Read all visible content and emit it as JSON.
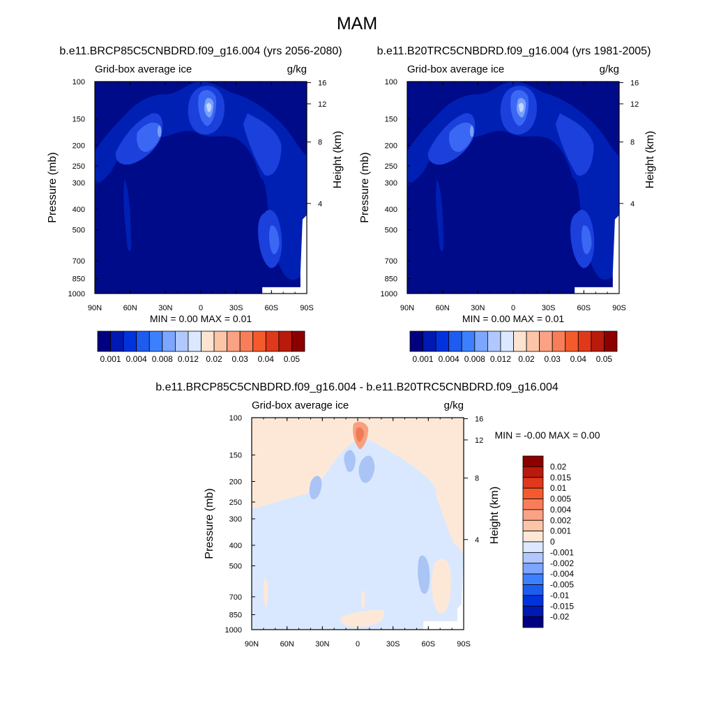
{
  "figure": {
    "title": "MAM",
    "colors": {
      "axis": "#000000",
      "background": "#ffffff"
    }
  },
  "chart_data": [
    {
      "type": "contour",
      "panel": "left",
      "title": "b.e11.BRCP85C5CNBDRD.f09_g16.004 (yrs 2056-2080)",
      "left_label": "Grid-box average ice",
      "right_label": "g/kg",
      "xlabel": "",
      "ylabel": "Pressure (mb)",
      "y2label": "Height (km)",
      "x_ticks": [
        "90N",
        "60N",
        "30N",
        "0",
        "30S",
        "60S",
        "90S"
      ],
      "x_range": [
        90,
        -90
      ],
      "y_ticks": [
        "100",
        "150",
        "200",
        "250",
        "300",
        "400",
        "500",
        "700",
        "850",
        "1000"
      ],
      "y_range": [
        100,
        1000
      ],
      "y2_ticks": [
        "16",
        "12",
        "8",
        "4"
      ],
      "stats": "MIN =   0.00  MAX =   0.01",
      "colorbar": {
        "orientation": "horizontal",
        "labels": [
          "0.001",
          "0.004",
          "0.008",
          "0.012",
          "0.02",
          "0.03",
          "0.04",
          "0.05"
        ],
        "colors": [
          "#000080",
          "#0019b3",
          "#0033dd",
          "#1e5cf0",
          "#3d80ff",
          "#7ca6ff",
          "#b0c8ff",
          "#dce8ff",
          "#fde3d0",
          "#fcc5a8",
          "#fba184",
          "#f87e5a",
          "#f55a2d",
          "#e0381a",
          "#b81a0c",
          "#8c0000"
        ]
      },
      "fill_colors": {
        "base": "#000b8a",
        "level1": "#0020b4",
        "level2": "#1b40dc",
        "level3": "#3a68f4",
        "level4": "#7aa0ff",
        "level5": "#c0d6ff"
      }
    },
    {
      "type": "contour",
      "panel": "right",
      "title": "b.e11.B20TRC5CNBDRD.f09_g16.004 (yrs 1981-2005)",
      "left_label": "Grid-box average ice",
      "right_label": "g/kg",
      "xlabel": "",
      "ylabel": "Pressure (mb)",
      "y2label": "Height (km)",
      "x_ticks": [
        "90N",
        "60N",
        "30N",
        "0",
        "30S",
        "60S",
        "90S"
      ],
      "x_range": [
        90,
        -90
      ],
      "y_ticks": [
        "100",
        "150",
        "200",
        "250",
        "300",
        "400",
        "500",
        "700",
        "850",
        "1000"
      ],
      "y_range": [
        100,
        1000
      ],
      "y2_ticks": [
        "16",
        "12",
        "8",
        "4"
      ],
      "stats": "MIN =   0.00  MAX =   0.01",
      "colorbar": {
        "orientation": "horizontal",
        "labels": [
          "0.001",
          "0.004",
          "0.008",
          "0.012",
          "0.02",
          "0.03",
          "0.04",
          "0.05"
        ],
        "colors": [
          "#000080",
          "#0019b3",
          "#0033dd",
          "#1e5cf0",
          "#3d80ff",
          "#7ca6ff",
          "#b0c8ff",
          "#dce8ff",
          "#fde3d0",
          "#fcc5a8",
          "#fba184",
          "#f87e5a",
          "#f55a2d",
          "#e0381a",
          "#b81a0c",
          "#8c0000"
        ]
      },
      "fill_colors": {
        "base": "#000b8a",
        "level1": "#0020b4",
        "level2": "#1b40dc",
        "level3": "#3a68f4",
        "level4": "#7aa0ff",
        "level5": "#c0d6ff"
      }
    },
    {
      "type": "contour",
      "panel": "difference",
      "title": "b.e11.BRCP85C5CNBDRD.f09_g16.004 - b.e11.B20TRC5CNBDRD.f09_g16.004",
      "left_label": "Grid-box average ice",
      "right_label": "g/kg",
      "xlabel": "",
      "ylabel": "Pressure (mb)",
      "y2label": "Height (km)",
      "x_ticks": [
        "90N",
        "60N",
        "30N",
        "0",
        "30S",
        "60S",
        "90S"
      ],
      "x_range": [
        90,
        -90
      ],
      "y_ticks": [
        "100",
        "150",
        "200",
        "250",
        "300",
        "400",
        "500",
        "700",
        "850",
        "1000"
      ],
      "y_range": [
        100,
        1000
      ],
      "y2_ticks": [
        "16",
        "12",
        "8",
        "4"
      ],
      "stats": "MIN =  -0.00  MAX =   0.00",
      "colorbar": {
        "orientation": "vertical",
        "labels": [
          "0.02",
          "0.015",
          "0.01",
          "0.005",
          "0.004",
          "0.002",
          "0.001",
          "0",
          "-0.001",
          "-0.002",
          "-0.004",
          "-0.005",
          "-0.01",
          "-0.015",
          "-0.02"
        ],
        "colors": [
          "#8c0000",
          "#b81a0c",
          "#e0381a",
          "#f55a2d",
          "#f87e5a",
          "#fba184",
          "#fcc5a8",
          "#fde8d8",
          "#dce8ff",
          "#b0c8ff",
          "#7ca6ff",
          "#3d80ff",
          "#1e5cf0",
          "#0033dd",
          "#0019b3",
          "#000080"
        ]
      },
      "fill_colors": {
        "pos_base": "#fde8d8",
        "neg_base": "#d9e8ff",
        "neg2": "#a9c4f5",
        "neg3": "#7aa0ff",
        "pos2": "#f8a07f",
        "pos3": "#f07a55"
      }
    }
  ]
}
